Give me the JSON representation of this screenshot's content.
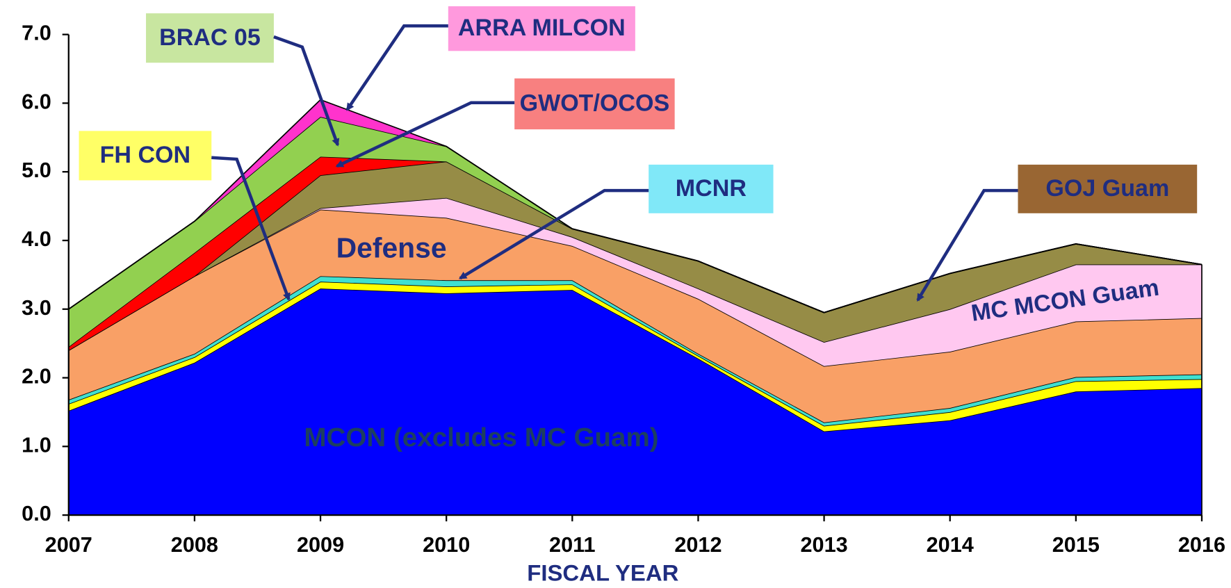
{
  "chart_data": {
    "type": "stacked_area",
    "x_label": "FISCAL YEAR",
    "categories": [
      "2007",
      "2008",
      "2009",
      "2010",
      "2011",
      "2012",
      "2013",
      "2014",
      "2015",
      "2016"
    ],
    "ylim": [
      0,
      7
    ],
    "yticks": [
      {
        "value": 0,
        "label": "0.0"
      },
      {
        "value": 1,
        "label": "1.0"
      },
      {
        "value": 2,
        "label": "2.0"
      },
      {
        "value": 3,
        "label": "3.0"
      },
      {
        "value": 4,
        "label": "4.0"
      },
      {
        "value": 5,
        "label": "5.0"
      },
      {
        "value": 6,
        "label": "6.0"
      },
      {
        "value": 7,
        "label": "7.0"
      }
    ],
    "series": [
      {
        "name": "MCON (excludes MC Guam)",
        "color": "#0000ff",
        "values": [
          1.52,
          2.22,
          3.3,
          3.23,
          3.28,
          2.28,
          1.22,
          1.38,
          1.8,
          1.85
        ]
      },
      {
        "name": "FH CON",
        "color": "#ffff00",
        "values": [
          0.1,
          0.08,
          0.1,
          0.1,
          0.08,
          0.04,
          0.08,
          0.12,
          0.15,
          0.13
        ]
      },
      {
        "name": "MCNR",
        "color": "#40e0d0",
        "values": [
          0.06,
          0.05,
          0.08,
          0.09,
          0.06,
          0.03,
          0.05,
          0.06,
          0.06,
          0.07
        ]
      },
      {
        "name": "Defense",
        "color": "#f9a066",
        "values": [
          0.72,
          1.13,
          0.97,
          0.91,
          0.5,
          0.8,
          0.82,
          0.82,
          0.81,
          0.82
        ]
      },
      {
        "name": "MC MCON Guam",
        "color": "#ffc8f0",
        "values": [
          0,
          0,
          0.02,
          0.29,
          0.13,
          0.15,
          0.35,
          0.62,
          0.83,
          0.78
        ]
      },
      {
        "name": "GOJ Guam",
        "color": "#968c46",
        "values": [
          0,
          0,
          0.48,
          0.53,
          0.12,
          0.4,
          0.43,
          0.52,
          0.3,
          0
        ]
      },
      {
        "name": "GWOT/OCOS",
        "color": "#ff0000",
        "values": [
          0.05,
          0.34,
          0.27,
          0,
          0,
          0,
          0,
          0,
          0,
          0
        ]
      },
      {
        "name": "BRAC 05",
        "color": "#92d050",
        "values": [
          0.55,
          0.46,
          0.58,
          0.22,
          0,
          0,
          0,
          0,
          0,
          0
        ]
      },
      {
        "name": "ARRA MILCON",
        "color": "#ff33cc",
        "values": [
          0,
          0,
          0.25,
          0,
          0,
          0,
          0,
          0,
          0,
          0
        ]
      }
    ]
  }
}
